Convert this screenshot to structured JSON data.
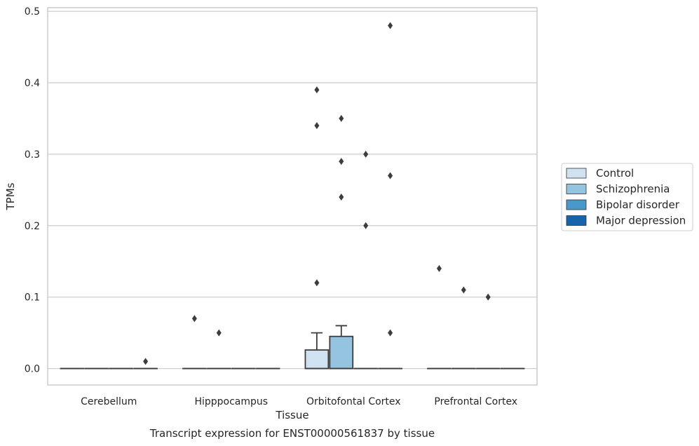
{
  "chart_data": {
    "type": "box",
    "title": "Transcript expression for ENST00000561837 by tissue",
    "xlabel": "Tissue",
    "ylabel": "TPMs",
    "ylim": [
      -0.023,
      0.505
    ],
    "yticks": [
      "0.0",
      "0.1",
      "0.2",
      "0.3",
      "0.4",
      "0.5"
    ],
    "grid": true,
    "legend_position": "right",
    "categories": [
      "Cerebellum",
      "Hipppocampus",
      "Orbitofontal Cortex",
      "Prefrontal Cortex"
    ],
    "series": [
      {
        "name": "Control",
        "color": "#d0e1f2",
        "boxes": [
          {
            "q1": 0,
            "median": 0,
            "q3": 0,
            "whislo": 0,
            "whishi": 0,
            "fliers": []
          },
          {
            "q1": 0,
            "median": 0,
            "q3": 0,
            "whislo": 0,
            "whishi": 0,
            "fliers": [
              0.07
            ]
          },
          {
            "q1": 0,
            "median": 0,
            "q3": 0.026,
            "whislo": 0,
            "whishi": 0.05,
            "fliers": [
              0.12,
              0.34,
              0.39
            ]
          },
          {
            "q1": 0,
            "median": 0,
            "q3": 0,
            "whislo": 0,
            "whishi": 0,
            "fliers": [
              0.14
            ]
          }
        ]
      },
      {
        "name": "Schizophrenia",
        "color": "#94c4df",
        "boxes": [
          {
            "q1": 0,
            "median": 0,
            "q3": 0,
            "whislo": 0,
            "whishi": 0,
            "fliers": []
          },
          {
            "q1": 0,
            "median": 0,
            "q3": 0,
            "whislo": 0,
            "whishi": 0,
            "fliers": [
              0.05
            ]
          },
          {
            "q1": 0,
            "median": 0,
            "q3": 0.045,
            "whislo": 0,
            "whishi": 0.06,
            "fliers": [
              0.24,
              0.29,
              0.35
            ]
          },
          {
            "q1": 0,
            "median": 0,
            "q3": 0,
            "whislo": 0,
            "whishi": 0,
            "fliers": [
              0.11
            ]
          }
        ]
      },
      {
        "name": "Bipolar disorder",
        "color": "#4a98c9",
        "boxes": [
          {
            "q1": 0,
            "median": 0,
            "q3": 0,
            "whislo": 0,
            "whishi": 0,
            "fliers": []
          },
          {
            "q1": 0,
            "median": 0,
            "q3": 0,
            "whislo": 0,
            "whishi": 0,
            "fliers": []
          },
          {
            "q1": 0,
            "median": 0,
            "q3": 0,
            "whislo": 0,
            "whishi": 0,
            "fliers": [
              0.2,
              0.3
            ]
          },
          {
            "q1": 0,
            "median": 0,
            "q3": 0,
            "whislo": 0,
            "whishi": 0,
            "fliers": [
              0.1
            ]
          }
        ]
      },
      {
        "name": "Major depression",
        "color": "#1764ab",
        "boxes": [
          {
            "q1": 0,
            "median": 0,
            "q3": 0,
            "whislo": 0,
            "whishi": 0,
            "fliers": [
              0.01
            ]
          },
          {
            "q1": 0,
            "median": 0,
            "q3": 0,
            "whislo": 0,
            "whishi": 0,
            "fliers": []
          },
          {
            "q1": 0,
            "median": 0,
            "q3": 0,
            "whislo": 0,
            "whishi": 0,
            "fliers": [
              0.05,
              0.27,
              0.48
            ]
          },
          {
            "q1": 0,
            "median": 0,
            "q3": 0,
            "whislo": 0,
            "whishi": 0,
            "fliers": []
          }
        ]
      }
    ]
  }
}
